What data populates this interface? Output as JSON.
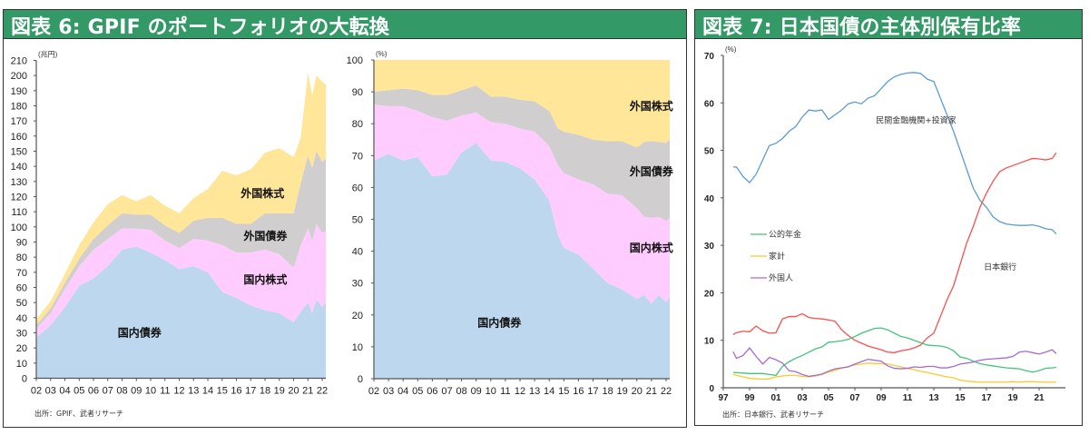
{
  "figures": {
    "left_title": "図表 6: GPIF のポートフォリオの大転換",
    "right_title": "図表 7: 日本国債の主体別保有比率",
    "left_source": "出所：GPIF、武者リサーチ",
    "right_source": "出所：日本銀行、武者リサーチ"
  },
  "colors": {
    "header_bg": "#339966",
    "domestic_bonds": "#bdd7ee",
    "domestic_equity": "#ffccff",
    "foreign_bonds": "#d0cece",
    "foreign_equity": "#ffe699",
    "private_fin": "#5b9bd5",
    "boj": "#ff4d4d",
    "public_pension": "#44c47a",
    "household": "#ffc830",
    "foreign": "#a66bd3"
  },
  "chart_data": [
    {
      "type": "area",
      "stacked": true,
      "title": "GPIF ポートフォリオ (金額)",
      "unit": "(兆円)",
      "xlabel": "",
      "ylabel": "",
      "ylim": [
        0,
        210
      ],
      "yticks": [
        0,
        10,
        20,
        30,
        40,
        50,
        60,
        70,
        80,
        90,
        100,
        110,
        120,
        130,
        140,
        150,
        160,
        170,
        180,
        190,
        200,
        210
      ],
      "xticks": [
        "02",
        "03",
        "04",
        "05",
        "06",
        "07",
        "08",
        "09",
        "10",
        "11",
        "12",
        "13",
        "14",
        "15",
        "16",
        "17",
        "18",
        "19",
        "20",
        "21",
        "22"
      ],
      "x": [
        2002,
        2003,
        2004,
        2005,
        2006,
        2007,
        2008,
        2009,
        2010,
        2011,
        2012,
        2013,
        2014,
        2015,
        2016,
        2017,
        2018,
        2019,
        2020,
        2020.5,
        2021,
        2021.3,
        2021.6,
        2022,
        2022.25
      ],
      "xlim": [
        2002,
        2022.25
      ],
      "series": [
        {
          "name": "国内債券",
          "key": "domestic_bonds",
          "values": [
            27,
            35,
            47,
            61,
            66,
            74,
            85,
            87,
            83,
            78,
            72,
            74,
            70,
            57,
            53,
            48,
            45,
            43,
            37,
            44,
            50,
            43,
            52,
            47,
            50
          ]
        },
        {
          "name": "国内株式",
          "key": "domestic_equity",
          "values": [
            6,
            8,
            12,
            13,
            19,
            18,
            14,
            12,
            15,
            13,
            14,
            18,
            21,
            31,
            30,
            35,
            40,
            39,
            36,
            44,
            49,
            48,
            50,
            49,
            47
          ]
        },
        {
          "name": "外国債券",
          "key": "foreign_bonds",
          "values": [
            2,
            3,
            4,
            5,
            7,
            9,
            10,
            9,
            10,
            10,
            10,
            12,
            15,
            18,
            19,
            19,
            24,
            27,
            36,
            41,
            48,
            48,
            48,
            47,
            48
          ]
        },
        {
          "name": "外国株式",
          "key": "foreign_equity",
          "values": [
            4,
            5,
            6,
            9,
            11,
            14,
            12,
            9,
            13,
            13,
            13,
            15,
            19,
            31,
            32,
            36,
            40,
            43,
            37,
            30,
            55,
            48,
            50,
            53,
            49
          ]
        }
      ],
      "labels": [
        {
          "text": "国内債券",
          "x": 2007.7,
          "y": 30
        },
        {
          "text": "国内株式",
          "x": 2016.5,
          "y": 65
        },
        {
          "text": "外国債券",
          "x": 2016.5,
          "y": 94
        },
        {
          "text": "外国株式",
          "x": 2016.3,
          "y": 122
        }
      ],
      "legend": "none"
    },
    {
      "type": "area",
      "stacked": true,
      "title": "GPIF ポートフォリオ (構成比)",
      "unit": "(%)",
      "xlabel": "",
      "ylabel": "",
      "ylim": [
        0,
        100
      ],
      "yticks": [
        0,
        10,
        20,
        30,
        40,
        50,
        60,
        70,
        80,
        90,
        100
      ],
      "xticks": [
        "02",
        "03",
        "04",
        "05",
        "06",
        "07",
        "08",
        "09",
        "10",
        "11",
        "12",
        "13",
        "14",
        "15",
        "16",
        "17",
        "18",
        "19",
        "20",
        "21",
        "22"
      ],
      "x": [
        2002,
        2003,
        2004,
        2005,
        2006,
        2007,
        2008,
        2009,
        2010,
        2011,
        2012,
        2013,
        2014,
        2014.6,
        2015,
        2016,
        2017,
        2018,
        2019,
        2020,
        2020.5,
        2021,
        2021.5,
        2022,
        2022.25
      ],
      "xlim": [
        2002,
        2022.25
      ],
      "series": [
        {
          "name": "国内債券",
          "key": "domestic_bonds",
          "values": [
            68.5,
            70.5,
            68.5,
            69.5,
            63.5,
            64,
            71,
            74,
            68.5,
            68,
            66,
            62.5,
            56,
            45,
            41,
            39,
            34.5,
            30,
            28,
            25,
            26.3,
            23.5,
            26.3,
            24,
            25.5
          ]
        },
        {
          "name": "国内株式",
          "key": "domestic_equity",
          "values": [
            17.5,
            15,
            17,
            14.5,
            18.5,
            17,
            11.5,
            9.5,
            12,
            12,
            12.5,
            15,
            17,
            22,
            23.5,
            23.5,
            26.5,
            28,
            29.5,
            28.5,
            24.5,
            27,
            24.5,
            25.5,
            25
          ]
        },
        {
          "name": "外国債券",
          "key": "foreign_bonds",
          "values": [
            4,
            5,
            5.5,
            6.5,
            7,
            8,
            8,
            8.5,
            8,
            8.5,
            9,
            9.5,
            11,
            11.5,
            13,
            14,
            14,
            16.5,
            17,
            19,
            23.5,
            24,
            23.5,
            24.5,
            24.5
          ]
        },
        {
          "name": "外国株式",
          "key": "foreign_equity",
          "values": [
            10,
            9.5,
            9,
            9.5,
            11,
            11,
            9.5,
            8,
            11.5,
            11.5,
            12.5,
            13,
            16,
            21.5,
            22.5,
            23.5,
            25,
            25.5,
            25.5,
            27.5,
            25.7,
            25.5,
            25.7,
            26,
            25
          ]
        }
      ],
      "labels": [
        {
          "text": "国内債券",
          "x": 2009.1,
          "y": 17.5
        },
        {
          "text": "国内株式",
          "x": 2019.5,
          "y": 41
        },
        {
          "text": "外国債券",
          "x": 2019.5,
          "y": 65
        },
        {
          "text": "外国株式",
          "x": 2019.5,
          "y": 85.5
        }
      ],
      "legend": "none"
    },
    {
      "type": "line",
      "title": "日本国債の主体別保有比率",
      "unit": "(%)",
      "xlabel": "",
      "ylabel": "",
      "ylim": [
        0,
        70
      ],
      "yticks": [
        0,
        10,
        20,
        30,
        40,
        50,
        60,
        70
      ],
      "xticks": [
        "97",
        "99",
        "01",
        "03",
        "05",
        "07",
        "09",
        "11",
        "13",
        "15",
        "17",
        "19",
        "21"
      ],
      "xlim": [
        1997,
        2023
      ],
      "x": [
        1997.75,
        1998,
        1998.5,
        1999,
        1999.5,
        2000,
        2000.5,
        2001,
        2001.5,
        2002,
        2002.5,
        2003,
        2003.5,
        2004,
        2004.5,
        2005,
        2005.5,
        2006,
        2006.5,
        2007,
        2007.5,
        2008,
        2008.5,
        2009,
        2009.5,
        2010,
        2010.5,
        2011,
        2011.5,
        2012,
        2012.5,
        2013,
        2013.5,
        2014,
        2014.5,
        2015,
        2015.5,
        2016,
        2016.5,
        2017,
        2017.5,
        2018,
        2018.5,
        2019,
        2019.5,
        2020,
        2020.5,
        2021,
        2021.5,
        2022,
        2022.3
      ],
      "series": [
        {
          "name": "民間金融機関+投資家",
          "key": "private_fin",
          "values": [
            46.5,
            46.5,
            44.5,
            43.2,
            45,
            48,
            51,
            51.5,
            52.5,
            54,
            55,
            57,
            58.5,
            58.3,
            58.5,
            56.5,
            57.5,
            58.5,
            59.8,
            60.2,
            59.8,
            61,
            61.5,
            63,
            64.5,
            65.5,
            66,
            66.3,
            66.4,
            66.2,
            65,
            64.5,
            61,
            57.5,
            54,
            50,
            46,
            42,
            39.5,
            38,
            36,
            35,
            34.5,
            34.3,
            34.2,
            34.2,
            34.3,
            34,
            33.5,
            33.3,
            32.4
          ]
        },
        {
          "name": "日本銀行",
          "key": "boj",
          "values": [
            11.2,
            11.6,
            11.9,
            11.8,
            13,
            12,
            11.5,
            11.6,
            14.5,
            15,
            15,
            15.6,
            14.8,
            14.6,
            14.5,
            14.3,
            14,
            12.2,
            11,
            10,
            9.4,
            8.8,
            8.4,
            8,
            7.5,
            7.4,
            7.8,
            8,
            8.4,
            9,
            10.5,
            11.5,
            15,
            18.5,
            21.5,
            26,
            30.5,
            34,
            38,
            41,
            43.5,
            45.5,
            46.3,
            46.8,
            47.3,
            47.8,
            48.3,
            48.2,
            48,
            48.3,
            49.5
          ]
        },
        {
          "name": "公的年金",
          "key": "public_pension",
          "values": [
            3.2,
            3.2,
            3.1,
            3,
            3,
            3,
            2.8,
            2.6,
            4.5,
            5.5,
            6.2,
            6.8,
            7.5,
            8.2,
            8.6,
            9.6,
            9.7,
            9.9,
            10.2,
            10.8,
            11.5,
            12,
            12.5,
            12.6,
            12.2,
            11.5,
            10.8,
            10.5,
            10,
            9.5,
            9,
            8.9,
            8.8,
            8.5,
            7.8,
            6.5,
            6.2,
            5.6,
            5.1,
            4.8,
            4.6,
            4.4,
            4.2,
            4.1,
            4,
            3.6,
            3.3,
            3.6,
            4.1,
            4.2,
            4.3
          ]
        },
        {
          "name": "家計",
          "key": "household",
          "values": [
            2.8,
            2.6,
            2.3,
            2,
            1.9,
            1.8,
            1.9,
            2.3,
            2.5,
            2.6,
            2.6,
            2.4,
            2.3,
            2.5,
            2.8,
            3.3,
            3.7,
            4.1,
            4.5,
            4.8,
            5,
            5.2,
            5.1,
            5.1,
            5,
            4.7,
            4.4,
            4.1,
            3.8,
            3.5,
            3.2,
            2.9,
            2.6,
            2.3,
            2.1,
            1.6,
            1.4,
            1.3,
            1.2,
            1.2,
            1.2,
            1.2,
            1.2,
            1.3,
            1.2,
            1.3,
            1.3,
            1.2,
            1.2,
            1.2,
            1.2
          ]
        },
        {
          "name": "外国人",
          "key": "foreign",
          "values": [
            7.6,
            6.2,
            6.8,
            8.4,
            6.6,
            5,
            6.4,
            5.9,
            5.2,
            3.6,
            3.4,
            2.8,
            2.4,
            2.6,
            2.9,
            3.5,
            4,
            4.2,
            4.4,
            5,
            5.5,
            6,
            5.8,
            5.6,
            4.6,
            4.1,
            4,
            4.1,
            4.4,
            4.3,
            4.5,
            4.5,
            4.2,
            4.2,
            4.5,
            5,
            5.2,
            5.4,
            5.8,
            6,
            6.1,
            6.2,
            6.3,
            6.6,
            7.5,
            7.7,
            7.4,
            7.1,
            7.5,
            8,
            7.2
          ]
        }
      ],
      "labels": [
        {
          "text": "民間金融機関+投資家",
          "key": "private_fin",
          "x": 2008.6,
          "y": 56.3
        },
        {
          "text": "日本銀行",
          "key": "boj",
          "x": 2016.8,
          "y": 25.4
        }
      ],
      "legend_items": [
        {
          "text": "公的年金",
          "key": "public_pension"
        },
        {
          "text": "家計",
          "key": "household"
        },
        {
          "text": "外国人",
          "key": "foreign"
        }
      ],
      "legend": "left-middle"
    }
  ]
}
